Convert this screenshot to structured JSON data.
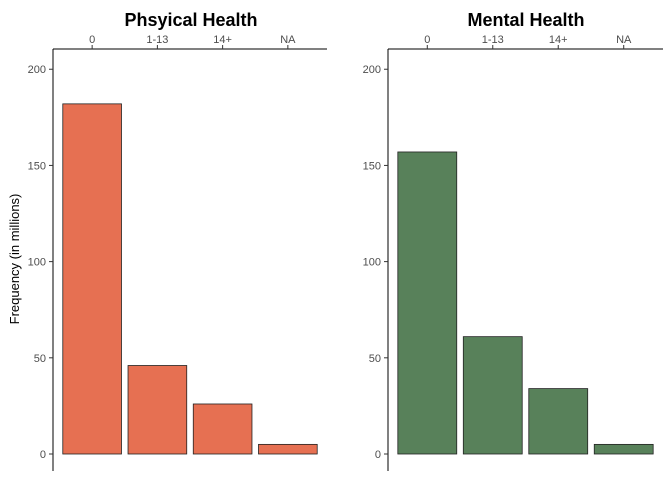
{
  "chart_data": [
    {
      "type": "bar",
      "title": "Phsyical Health",
      "categories": [
        "0",
        "1-13",
        "14+",
        "NA"
      ],
      "values": [
        182,
        46,
        26,
        5
      ],
      "ylabel": "Frequency (in millions)",
      "xlabel": "",
      "ylim": [
        0,
        210
      ],
      "yticks": [
        0,
        50,
        100,
        150,
        200
      ],
      "xaxis_position": "top",
      "grid": false,
      "color": "#e67052"
    },
    {
      "type": "bar",
      "title": "Mental Health",
      "categories": [
        "0",
        "1-13",
        "14+",
        "NA"
      ],
      "values": [
        157,
        61,
        34,
        5
      ],
      "ylabel": "",
      "xlabel": "",
      "ylim": [
        0,
        210
      ],
      "yticks": [
        0,
        50,
        100,
        150,
        200
      ],
      "xaxis_position": "top",
      "grid": false,
      "color": "#58815a"
    }
  ]
}
